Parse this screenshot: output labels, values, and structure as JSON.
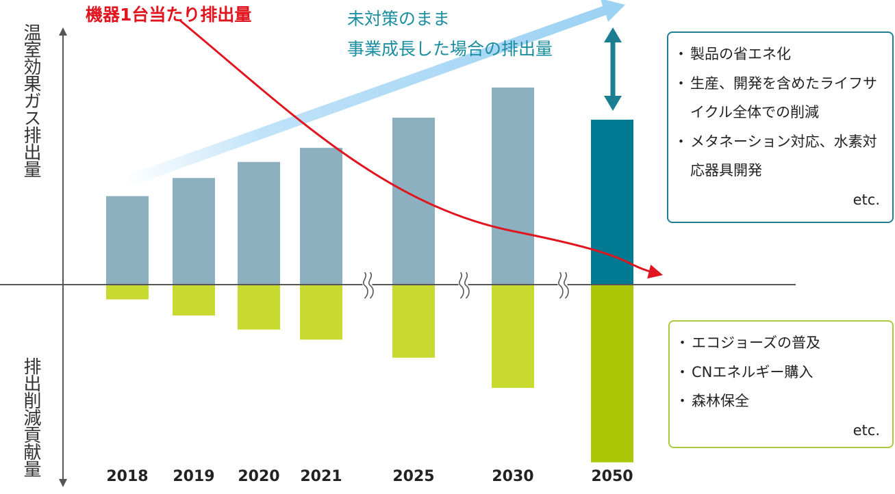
{
  "chart_data": {
    "type": "bar",
    "stacking": "diverging",
    "categories": [
      "2018",
      "2019",
      "2020",
      "2021",
      "2025",
      "2030",
      "2050"
    ],
    "series": [
      {
        "name": "温室効果ガス排出量",
        "values": [
          44,
          53,
          61,
          68,
          83,
          98,
          82
        ],
        "colors": [
          "#8cb0c0",
          "#8cb0c0",
          "#8cb0c0",
          "#8cb0c0",
          "#8cb0c0",
          "#8cb0c0",
          "#007a93"
        ]
      },
      {
        "name": "排出削減貢献量",
        "values": [
          -7,
          -15,
          -22,
          -27,
          -36,
          -51,
          -88
        ],
        "colors": [
          "#c8da2f",
          "#c8da2f",
          "#c8da2f",
          "#c8da2f",
          "#c8da2f",
          "#c8da2f",
          "#aac808"
        ]
      }
    ],
    "axis_breaks_after": [
      "2021",
      "2025",
      "2030"
    ],
    "ylabel_positive": "温室効果ガス排出量",
    "ylabel_negative": "排出削減貢献量",
    "annotations": {
      "red_curve_label": "機器1台当たり排出量",
      "blue_arrow_label_line1": "未対策のまま",
      "blue_arrow_label_line2": "事業成長した場合の排出量"
    },
    "colors": {
      "red": "#e0151f",
      "teal": "#1b8da0",
      "arrow_light": "#a3d4f3",
      "axis": "#555555"
    }
  },
  "boxes": {
    "measures": {
      "items": [
        "製品の省エネ化",
        "生産、開発を含めたライフサイクル全体での削減",
        "メタネーション対応、水素対応器具開発"
      ],
      "etc": "etc."
    },
    "offsets": {
      "items": [
        "エコジョーズの普及",
        "CNエネルギー購入",
        "森林保全"
      ],
      "etc": "etc."
    }
  }
}
